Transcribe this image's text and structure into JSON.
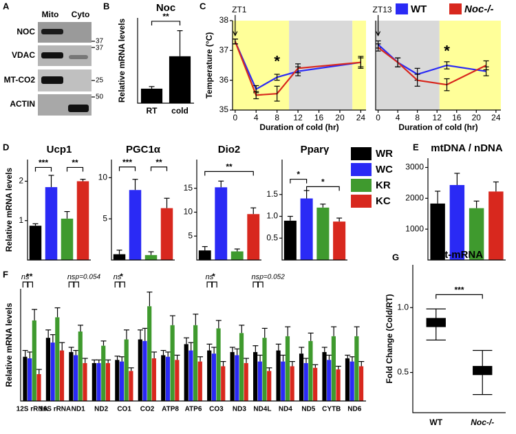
{
  "blot": {
    "panel": "A",
    "columns": [
      "Mito",
      "Cyto"
    ],
    "rows": [
      "NOC",
      "VDAC",
      "MT-CO2",
      "ACTIN"
    ],
    "markers": [
      "37",
      "37",
      "25",
      "50"
    ]
  },
  "condition_legend": [
    {
      "name": "WT",
      "color": "#2a2af5"
    },
    {
      "name": "Noc-/-",
      "color": "#d8281e"
    }
  ],
  "groups": [
    {
      "name": "WR",
      "color": "#000000"
    },
    {
      "name": "WC",
      "color": "#2a2af5"
    },
    {
      "name": "KR",
      "color": "#3f9a2e"
    },
    {
      "name": "KC",
      "color": "#d8281e"
    }
  ],
  "chart_data": [
    {
      "type": "bar",
      "panel": "B",
      "title": "Noc",
      "ylabel": "Relative mRNA levels",
      "categories": [
        "RT",
        "cold"
      ],
      "values": [
        1.7,
        5.5
      ],
      "errors": [
        0.25,
        3.0
      ],
      "color": "#000000",
      "ylim": [
        0,
        10
      ],
      "brackets": [
        {
          "text": "**",
          "from": 0,
          "to": 1,
          "y": 9.6
        }
      ]
    },
    {
      "type": "line",
      "panel": "C",
      "ylabel": "Temperature (°C)",
      "xlabel": "Duration of cold (hr)",
      "x": [
        0,
        4,
        8,
        12,
        24
      ],
      "series": [
        {
          "values": [
            37.3,
            35.7,
            36.1,
            36.3,
            36.6
          ],
          "errors": [
            0.08,
            0.12,
            0.1,
            0.15,
            0.15
          ]
        },
        {
          "values": [
            37.3,
            35.5,
            35.55,
            36.4,
            36.6
          ],
          "errors": [
            0.08,
            0.12,
            0.25,
            0.15,
            0.2
          ]
        }
      ],
      "xlim": [
        -0.5,
        25
      ],
      "xticks": [
        0,
        4,
        8,
        12,
        16,
        20,
        24
      ],
      "ylim": [
        35,
        38
      ],
      "yticks": [
        35,
        36,
        37,
        38
      ],
      "shading": [
        {
          "from": -0.5,
          "to": 10.3,
          "color": "#ffff99"
        },
        {
          "from": 10.3,
          "to": 22.4,
          "color": "#d9d9d9"
        },
        {
          "from": 22.4,
          "to": 25,
          "color": "#ffff99"
        }
      ],
      "annotations": [
        {
          "text": "ZT1",
          "x": 0,
          "y": 38.35,
          "arrow_to": 37.5
        },
        {
          "text": "*",
          "x": 8,
          "y": 36.6
        }
      ]
    },
    {
      "type": "line",
      "xlabel": "Duration of cold (hr)",
      "x": [
        0,
        4,
        8,
        14,
        22
      ],
      "series": [
        {
          "values": [
            37.2,
            36.6,
            36.2,
            36.5,
            36.3
          ],
          "errors": [
            0.12,
            0.15,
            0.2,
            0.12,
            0.15
          ]
        },
        {
          "values": [
            37.1,
            36.6,
            36.0,
            35.85,
            36.5
          ],
          "errors": [
            0.12,
            0.15,
            0.2,
            0.2,
            0.15
          ]
        }
      ],
      "xlim": [
        -0.5,
        25
      ],
      "xticks": [
        0,
        4,
        8,
        12,
        16,
        20,
        24
      ],
      "ylim": [
        35,
        38
      ],
      "shading": [
        {
          "from": -0.5,
          "to": 12.5,
          "color": "#d9d9d9"
        },
        {
          "from": 12.5,
          "to": 25,
          "color": "#ffff99"
        }
      ],
      "annotations": [
        {
          "text": "ZT13",
          "x": 0,
          "y": 38.35,
          "arrow_to": 37.5
        },
        {
          "text": "*",
          "x": 14,
          "y": 36.95
        }
      ]
    },
    {
      "type": "bar",
      "panel": "D",
      "title": "Ucp1",
      "ylabel": "Relative mRNA levels",
      "values": [
        0.87,
        1.85,
        1.05,
        2.0
      ],
      "errors": [
        0.05,
        0.3,
        0.18,
        0.05
      ],
      "ylim": [
        0,
        2.55
      ],
      "yticks": [
        1,
        2
      ],
      "brackets": [
        {
          "text": "***",
          "from": 0,
          "to": 1,
          "y": 2.35
        },
        {
          "text": "**",
          "from": 2,
          "to": 3,
          "y": 2.35
        }
      ]
    },
    {
      "type": "bar",
      "title": "PGC1α",
      "values": [
        0.7,
        8.5,
        0.6,
        6.3
      ],
      "errors": [
        0.5,
        1.3,
        0.4,
        1.2
      ],
      "ylim": [
        0,
        12.2
      ],
      "yticks": [
        5,
        10
      ],
      "brackets": [
        {
          "text": "***",
          "from": 0,
          "to": 1,
          "y": 11.3
        },
        {
          "text": "**",
          "from": 2,
          "to": 3,
          "y": 11.3
        }
      ]
    },
    {
      "type": "bar",
      "title": "Dio2",
      "values": [
        2,
        15.2,
        1.8,
        9.6
      ],
      "errors": [
        0.8,
        1.3,
        0.5,
        1.3
      ],
      "ylim": [
        0,
        21
      ],
      "yticks": [
        5,
        10,
        15
      ],
      "brackets": [
        {
          "text": "**",
          "from": 0,
          "to": 3,
          "y": 18.5
        }
      ]
    },
    {
      "type": "bar",
      "title": "Pparγ",
      "values": [
        0.9,
        1.41,
        1.2,
        0.88
      ],
      "errors": [
        0.1,
        0.18,
        0.08,
        0.08
      ],
      "ylim": [
        0,
        2.3
      ],
      "yticks": [
        {
          "value": 0.5,
          "label": "0.5"
        },
        {
          "value": 1.0,
          "label": "1.0"
        },
        {
          "value": 1.5,
          "label": "1.5"
        }
      ],
      "brackets": [
        {
          "text": "*",
          "from": 0,
          "to": 1,
          "y": 1.85
        },
        {
          "text": "*",
          "from": 1,
          "to": 3,
          "y": 1.68
        }
      ]
    },
    {
      "type": "bar",
      "panel": "E",
      "title": "mtDNA / nDNA",
      "values": [
        1830,
        2430,
        1680,
        2220
      ],
      "errors": [
        400,
        380,
        230,
        310
      ],
      "ylim": [
        0,
        3300
      ],
      "yticks": [
        1000,
        2000,
        3000
      ]
    },
    {
      "type": "grouped_bar",
      "panel": "F",
      "ylabel": "Relative mRNA levels",
      "categories": [
        "12S rRNA",
        "16S rRNA",
        "ND1",
        "ND2",
        "CO1",
        "CO2",
        "ATP8",
        "ATP6",
        "CO3",
        "ND3",
        "ND4L",
        "ND4",
        "ND5",
        "CYTB",
        "ND6"
      ],
      "series": [
        {
          "values": [
            1.4,
            2.0,
            1.55,
            1.2,
            1.3,
            1.95,
            1.45,
            1.8,
            1.6,
            1.55,
            1.55,
            1.6,
            1.5,
            1.55,
            1.35
          ],
          "errors": [
            0.2,
            0.25,
            0.15,
            0.1,
            0.12,
            0.3,
            0.15,
            0.2,
            0.2,
            0.15,
            0.2,
            0.2,
            0.2,
            0.15,
            0.1
          ]
        },
        {
          "values": [
            1.35,
            1.85,
            1.45,
            1.2,
            1.25,
            1.9,
            1.4,
            1.6,
            1.5,
            1.45,
            1.25,
            1.25,
            1.2,
            1.3,
            1.25
          ],
          "errors": [
            0.2,
            0.25,
            0.15,
            0.1,
            0.15,
            0.4,
            0.15,
            0.25,
            0.2,
            0.2,
            0.2,
            0.2,
            0.15,
            0.15,
            0.15
          ]
        },
        {
          "values": [
            2.55,
            2.65,
            2.2,
            1.75,
            1.95,
            3.0,
            2.4,
            2.4,
            2.3,
            2.15,
            2.0,
            2.05,
            1.9,
            2.05,
            2.05
          ],
          "errors": [
            0.35,
            0.3,
            0.2,
            0.15,
            0.3,
            0.45,
            0.3,
            0.35,
            0.25,
            0.25,
            0.3,
            0.3,
            0.25,
            0.3,
            0.3
          ]
        },
        {
          "values": [
            0.85,
            1.6,
            1.2,
            1.2,
            0.95,
            1.35,
            1.3,
            1.25,
            1.1,
            1.2,
            0.95,
            1.1,
            1.05,
            1.0,
            1.1
          ],
          "errors": [
            0.15,
            0.25,
            0.15,
            0.1,
            0.1,
            0.2,
            0.15,
            0.15,
            0.15,
            0.15,
            0.1,
            0.15,
            0.1,
            0.1,
            0.15
          ]
        }
      ],
      "ylim": [
        0,
        3.55
      ],
      "annotations": [
        {
          "category": 0,
          "texts": [
            "ns",
            "**"
          ]
        },
        {
          "category": 2,
          "texts": [
            "ns",
            "p=0.054"
          ]
        },
        {
          "category": 4,
          "texts": [
            "ns",
            "*"
          ]
        },
        {
          "category": 8,
          "texts": [
            "ns",
            "*"
          ]
        },
        {
          "category": 10,
          "texts": [
            "ns",
            "p=0.052"
          ]
        }
      ]
    },
    {
      "type": "box",
      "panel": "G",
      "title": "mt-mRNA",
      "ylabel": "Fold Change (Cold/RT)",
      "categories": [
        "WT",
        "Noc-/-"
      ],
      "boxes": [
        {
          "whislo": 0.75,
          "q1": 0.85,
          "median": 0.88,
          "q3": 0.92,
          "whishi": 0.99
        },
        {
          "whislo": 0.33,
          "q1": 0.48,
          "median": 0.52,
          "q3": 0.55,
          "whishi": 0.67
        }
      ],
      "ylim": [
        0.19,
        1.33
      ],
      "yticks": [
        {
          "value": 0.5,
          "label": "0.5"
        },
        {
          "value": 1.0,
          "label": "1.0"
        }
      ],
      "brackets": [
        {
          "text": "***",
          "from": 0,
          "to": 1,
          "y": 1.1
        }
      ]
    }
  ]
}
